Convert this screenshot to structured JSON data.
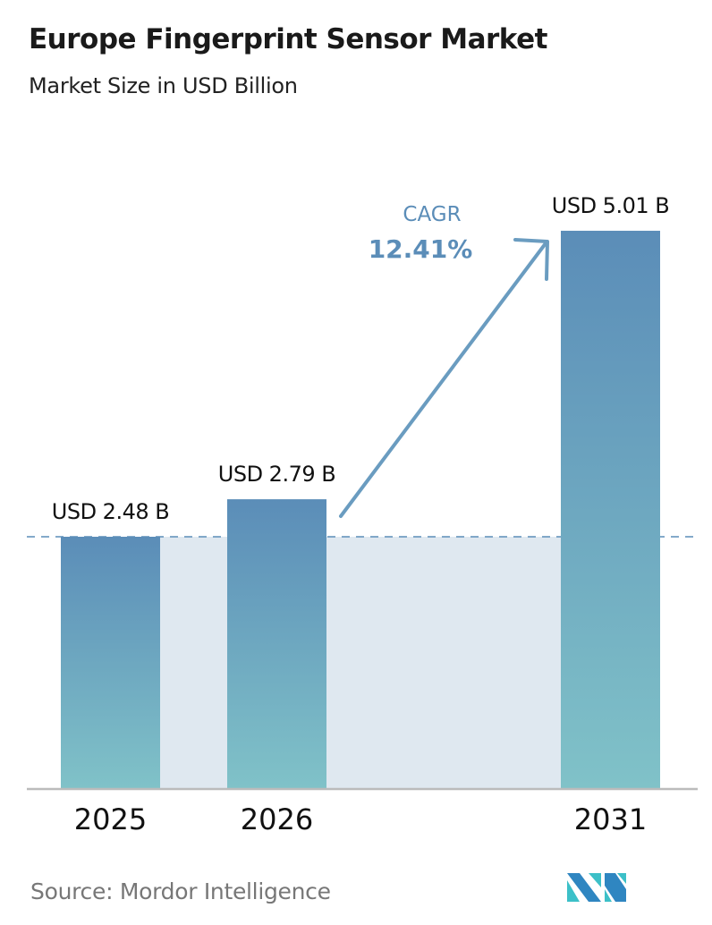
{
  "chart_data": {
    "type": "bar",
    "title": "Europe Fingerprint Sensor Market",
    "subtitle": "Market Size in USD Billion",
    "categories": [
      "2025",
      "2026",
      "2031"
    ],
    "values": [
      2.48,
      2.79,
      5.01
    ],
    "data_labels": [
      "USD 2.48 B",
      "USD 2.79 B",
      "USD 5.01 B"
    ],
    "annotation": {
      "label": "CAGR",
      "value": "12.41%"
    },
    "grid": false,
    "colors": {
      "bar_top": "#5b8db8",
      "bar_bottom": "#80c2c8",
      "band": "#dfe8f0",
      "arrow": "#6a9cc0",
      "cagr_text": "#5b8db8"
    }
  },
  "source": "Source:  Mordor Intelligence",
  "logo": "Mordor Intelligence logo"
}
